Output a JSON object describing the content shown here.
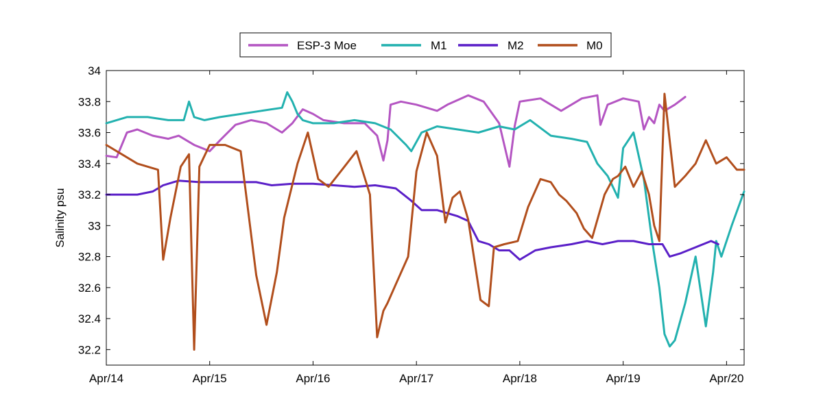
{
  "chart_data": {
    "type": "line",
    "title": "",
    "xlabel": "",
    "ylabel": "Salinity psu",
    "xlim": [
      0,
      6.17
    ],
    "ylim": [
      32.1,
      34
    ],
    "xticks": [
      {
        "value": 0,
        "label": "Apr/14"
      },
      {
        "value": 1,
        "label": "Apr/15"
      },
      {
        "value": 2,
        "label": "Apr/16"
      },
      {
        "value": 3,
        "label": "Apr/17"
      },
      {
        "value": 4,
        "label": "Apr/18"
      },
      {
        "value": 5,
        "label": "Apr/19"
      },
      {
        "value": 6,
        "label": "Apr/20"
      }
    ],
    "yticks": [
      {
        "value": 32.2,
        "label": "32.2"
      },
      {
        "value": 32.4,
        "label": "32.4"
      },
      {
        "value": 32.6,
        "label": "32.6"
      },
      {
        "value": 32.8,
        "label": "32.8"
      },
      {
        "value": 33.0,
        "label": "33"
      },
      {
        "value": 33.2,
        "label": "33.2"
      },
      {
        "value": 33.4,
        "label": "33.4"
      },
      {
        "value": 33.6,
        "label": "33.6"
      },
      {
        "value": 33.8,
        "label": "33.8"
      },
      {
        "value": 34.0,
        "label": "34"
      }
    ],
    "grid": false,
    "legend": "top-center, horizontal, boxed",
    "series": [
      {
        "name": "ESP-3 Moe",
        "color": "#B455C2",
        "x": [
          0,
          0.1,
          0.2,
          0.3,
          0.45,
          0.6,
          0.7,
          0.85,
          1.0,
          1.1,
          1.25,
          1.4,
          1.55,
          1.7,
          1.8,
          1.9,
          2.0,
          2.1,
          2.3,
          2.5,
          2.62,
          2.68,
          2.72,
          2.75,
          2.85,
          3.0,
          3.1,
          3.2,
          3.3,
          3.5,
          3.65,
          3.8,
          3.9,
          3.95,
          4.0,
          4.2,
          4.4,
          4.6,
          4.75,
          4.78,
          4.85,
          5.0,
          5.15,
          5.2,
          5.25,
          5.3,
          5.35,
          5.4,
          5.5,
          5.6
        ],
        "values": [
          33.45,
          33.44,
          33.6,
          33.62,
          33.58,
          33.56,
          33.58,
          33.52,
          33.48,
          33.55,
          33.65,
          33.68,
          33.66,
          33.6,
          33.66,
          33.75,
          33.72,
          33.68,
          33.66,
          33.66,
          33.58,
          33.42,
          33.55,
          33.78,
          33.8,
          33.78,
          33.76,
          33.74,
          33.78,
          33.84,
          33.8,
          33.66,
          33.38,
          33.64,
          33.8,
          33.82,
          33.74,
          33.82,
          33.84,
          33.65,
          33.78,
          33.82,
          33.8,
          33.62,
          33.7,
          33.66,
          33.78,
          33.74,
          33.78,
          33.83
        ]
      },
      {
        "name": "M1",
        "color": "#22B1AF",
        "x": [
          0,
          0.2,
          0.4,
          0.6,
          0.75,
          0.8,
          0.85,
          0.95,
          1.1,
          1.3,
          1.5,
          1.7,
          1.75,
          1.8,
          1.85,
          1.9,
          2.0,
          2.2,
          2.4,
          2.6,
          2.75,
          2.9,
          2.95,
          3.05,
          3.2,
          3.4,
          3.6,
          3.8,
          3.95,
          4.1,
          4.3,
          4.5,
          4.65,
          4.75,
          4.85,
          4.9,
          4.95,
          5.0,
          5.1,
          5.2,
          5.28,
          5.35,
          5.4,
          5.45,
          5.5,
          5.6,
          5.7,
          5.8,
          5.87,
          5.9,
          5.95,
          6.05,
          6.17
        ],
        "values": [
          33.66,
          33.7,
          33.7,
          33.68,
          33.68,
          33.8,
          33.7,
          33.68,
          33.7,
          33.72,
          33.74,
          33.76,
          33.86,
          33.8,
          33.72,
          33.68,
          33.66,
          33.66,
          33.68,
          33.66,
          33.62,
          33.52,
          33.48,
          33.6,
          33.64,
          33.62,
          33.6,
          33.64,
          33.62,
          33.68,
          33.58,
          33.56,
          33.54,
          33.4,
          33.32,
          33.25,
          33.18,
          33.5,
          33.6,
          33.3,
          32.9,
          32.6,
          32.3,
          32.22,
          32.26,
          32.5,
          32.8,
          32.35,
          32.7,
          32.9,
          32.8,
          33.0,
          33.22
        ]
      },
      {
        "name": "M2",
        "color": "#5A1FC8",
        "x": [
          0,
          0.3,
          0.45,
          0.55,
          0.7,
          0.9,
          1.1,
          1.3,
          1.45,
          1.6,
          1.8,
          2.0,
          2.2,
          2.4,
          2.6,
          2.8,
          2.95,
          3.05,
          3.2,
          3.4,
          3.5,
          3.6,
          3.7,
          3.8,
          3.9,
          4.0,
          4.15,
          4.3,
          4.5,
          4.65,
          4.8,
          4.95,
          5.1,
          5.25,
          5.38,
          5.45,
          5.55,
          5.7,
          5.85,
          5.92
        ],
        "values": [
          33.2,
          33.2,
          33.22,
          33.26,
          33.29,
          33.28,
          33.28,
          33.28,
          33.28,
          33.26,
          33.27,
          33.27,
          33.26,
          33.25,
          33.26,
          33.24,
          33.16,
          33.1,
          33.1,
          33.06,
          33.03,
          32.9,
          32.88,
          32.84,
          32.84,
          32.78,
          32.84,
          32.86,
          32.88,
          32.9,
          32.88,
          32.9,
          32.9,
          32.88,
          32.88,
          32.8,
          32.82,
          32.86,
          32.9,
          32.88
        ]
      },
      {
        "name": "M0",
        "color": "#B14E1C",
        "x": [
          0,
          0.15,
          0.3,
          0.5,
          0.55,
          0.62,
          0.72,
          0.8,
          0.85,
          0.9,
          1.0,
          1.15,
          1.3,
          1.45,
          1.55,
          1.65,
          1.72,
          1.85,
          1.95,
          2.05,
          2.15,
          2.28,
          2.42,
          2.55,
          2.62,
          2.68,
          2.72,
          2.8,
          2.92,
          3.0,
          3.1,
          3.2,
          3.28,
          3.35,
          3.42,
          3.5,
          3.62,
          3.7,
          3.75,
          3.85,
          3.98,
          4.08,
          4.2,
          4.3,
          4.38,
          4.45,
          4.55,
          4.62,
          4.7,
          4.82,
          4.9,
          4.95,
          5.02,
          5.1,
          5.18,
          5.25,
          5.3,
          5.35,
          5.4,
          5.5,
          5.6,
          5.7,
          5.8,
          5.9,
          6.0,
          6.1,
          6.17
        ],
        "values": [
          33.52,
          33.46,
          33.4,
          33.36,
          32.78,
          33.05,
          33.38,
          33.46,
          32.2,
          33.38,
          33.52,
          33.52,
          33.48,
          32.68,
          32.36,
          32.7,
          33.05,
          33.4,
          33.6,
          33.3,
          33.25,
          33.36,
          33.48,
          33.2,
          32.28,
          32.45,
          32.5,
          32.62,
          32.8,
          33.35,
          33.6,
          33.45,
          33.02,
          33.18,
          33.22,
          33.04,
          32.52,
          32.48,
          32.86,
          32.88,
          32.9,
          33.12,
          33.3,
          33.28,
          33.2,
          33.16,
          33.08,
          32.98,
          32.92,
          33.2,
          33.3,
          33.32,
          33.38,
          33.25,
          33.35,
          33.2,
          33.0,
          32.9,
          33.85,
          33.25,
          33.32,
          33.4,
          33.55,
          33.4,
          33.44,
          33.36,
          33.36
        ]
      }
    ]
  }
}
